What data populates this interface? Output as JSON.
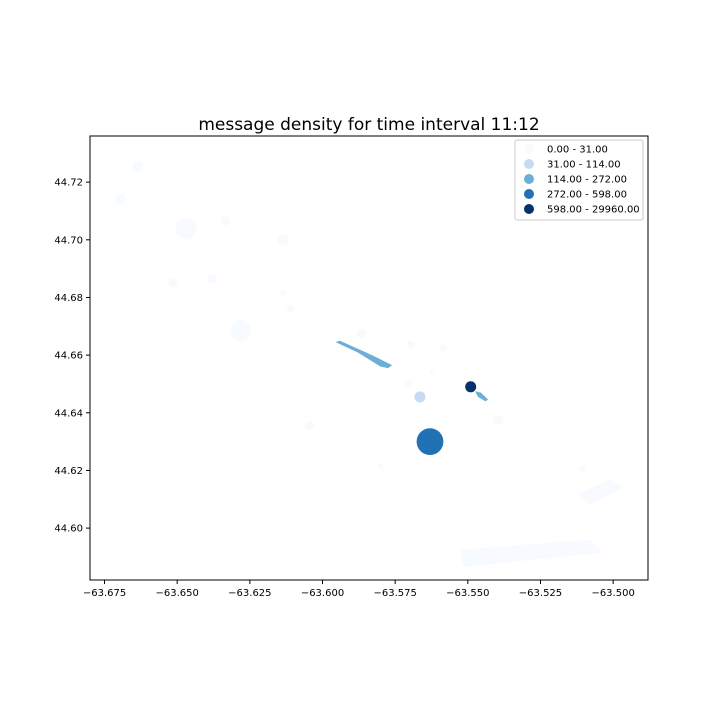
{
  "chart_data": {
    "type": "choropleth-map",
    "title": "message density for time interval 11:12",
    "xlim": [
      -63.68,
      -63.488
    ],
    "ylim": [
      44.582,
      44.736
    ],
    "x_ticks": [
      {
        "value": -63.675,
        "label": "−63.675"
      },
      {
        "value": -63.65,
        "label": "−63.650"
      },
      {
        "value": -63.625,
        "label": "−63.625"
      },
      {
        "value": -63.6,
        "label": "−63.600"
      },
      {
        "value": -63.575,
        "label": "−63.575"
      },
      {
        "value": -63.55,
        "label": "−63.550"
      },
      {
        "value": -63.525,
        "label": "−63.525"
      },
      {
        "value": -63.5,
        "label": "−63.500"
      }
    ],
    "y_ticks": [
      {
        "value": 44.6,
        "label": "44.60"
      },
      {
        "value": 44.62,
        "label": "44.62"
      },
      {
        "value": 44.64,
        "label": "44.64"
      },
      {
        "value": 44.66,
        "label": "44.66"
      },
      {
        "value": 44.68,
        "label": "44.68"
      },
      {
        "value": 44.7,
        "label": "44.70"
      },
      {
        "value": 44.72,
        "label": "44.72"
      }
    ],
    "legend": {
      "placement": "top-right",
      "classes": [
        {
          "label": "0.00 - 31.00",
          "color": "#f7fbff"
        },
        {
          "label": "31.00 - 114.00",
          "color": "#c6dbef"
        },
        {
          "label": "114.00 - 272.00",
          "color": "#6baed6"
        },
        {
          "label": "272.00 - 598.00",
          "color": "#2171b5"
        },
        {
          "label": "598.00 - 29960.00",
          "color": "#08306b"
        }
      ]
    },
    "circles": [
      {
        "lon": -63.6635,
        "lat": 44.7255,
        "r": 0.0019,
        "cls": 0
      },
      {
        "lon": -63.6695,
        "lat": 44.714,
        "r": 0.0019,
        "cls": 0
      },
      {
        "lon": -63.647,
        "lat": 44.704,
        "r": 0.0036,
        "cls": 0
      },
      {
        "lon": -63.6335,
        "lat": 44.7065,
        "r": 0.0016,
        "cls": 0
      },
      {
        "lon": -63.6135,
        "lat": 44.7,
        "r": 0.0019,
        "cls": 0
      },
      {
        "lon": -63.638,
        "lat": 44.6865,
        "r": 0.0016,
        "cls": 0
      },
      {
        "lon": -63.6515,
        "lat": 44.685,
        "r": 0.0016,
        "cls": 0
      },
      {
        "lon": -63.6135,
        "lat": 44.6815,
        "r": 0.001,
        "cls": 0
      },
      {
        "lon": -63.611,
        "lat": 44.676,
        "r": 0.0013,
        "cls": 0
      },
      {
        "lon": -63.628,
        "lat": 44.6685,
        "r": 0.0036,
        "cls": 0
      },
      {
        "lon": -63.5865,
        "lat": 44.6675,
        "r": 0.0016,
        "cls": 0
      },
      {
        "lon": -63.5695,
        "lat": 44.6635,
        "r": 0.0014,
        "cls": 0
      },
      {
        "lon": -63.5585,
        "lat": 44.6625,
        "r": 0.0014,
        "cls": 0
      },
      {
        "lon": -63.5625,
        "lat": 44.654,
        "r": 0.0007,
        "cls": 0
      },
      {
        "lon": -63.5705,
        "lat": 44.65,
        "r": 0.0014,
        "cls": 0
      },
      {
        "lon": -63.5665,
        "lat": 44.6455,
        "r": 0.0019,
        "cls": 1
      },
      {
        "lon": -63.549,
        "lat": 44.649,
        "r": 0.0019,
        "cls": 4
      },
      {
        "lon": -63.5395,
        "lat": 44.6375,
        "r": 0.0017,
        "cls": 0
      },
      {
        "lon": -63.6045,
        "lat": 44.6355,
        "r": 0.0016,
        "cls": 0
      },
      {
        "lon": -63.563,
        "lat": 44.63,
        "r": 0.0046,
        "cls": 3
      },
      {
        "lon": -63.58,
        "lat": 44.6215,
        "r": 0.001,
        "cls": 0
      },
      {
        "lon": -63.5105,
        "lat": 44.6205,
        "r": 0.0013,
        "cls": 0
      }
    ],
    "polygons": [
      {
        "cls": 2,
        "points": [
          [
            -63.5955,
            44.6645
          ],
          [
            -63.594,
            44.665
          ],
          [
            -63.583,
            44.66
          ],
          [
            -63.576,
            44.6565
          ],
          [
            -63.5775,
            44.6555
          ],
          [
            -63.58,
            44.656
          ],
          [
            -63.588,
            44.661
          ]
        ]
      },
      {
        "cls": 2,
        "points": [
          [
            -63.5475,
            44.6475
          ],
          [
            -63.5455,
            44.647
          ],
          [
            -63.543,
            44.6445
          ],
          [
            -63.544,
            44.644
          ],
          [
            -63.5465,
            44.6455
          ]
        ]
      },
      {
        "cls": 0,
        "points": [
          [
            -63.512,
            44.612
          ],
          [
            -63.501,
            44.617
          ],
          [
            -63.4965,
            44.614
          ],
          [
            -63.508,
            44.608
          ]
        ]
      },
      {
        "cls": 0,
        "points": [
          [
            -63.553,
            44.5925
          ],
          [
            -63.508,
            44.596
          ],
          [
            -63.5035,
            44.5915
          ],
          [
            -63.5515,
            44.5865
          ]
        ]
      }
    ]
  }
}
